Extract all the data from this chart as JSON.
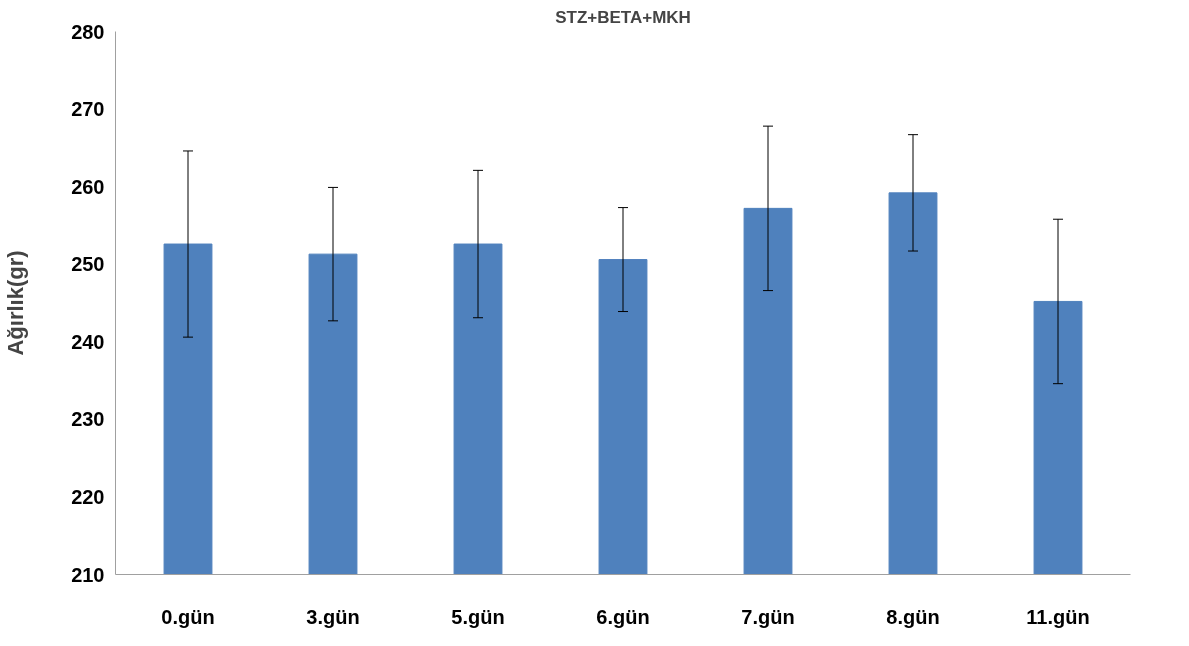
{
  "chart_data": {
    "type": "bar",
    "title": "STZ+BETA+MKH",
    "ylabel": "Ağırlık(gr)",
    "categories": [
      "0.gün",
      "3.gün",
      "5.gün",
      "6.gün",
      "7.gün",
      "8.gün",
      "11.gün"
    ],
    "values": [
      252.6,
      251.3,
      252.6,
      250.6,
      257.2,
      259.2,
      245.2
    ],
    "errors": [
      12.0,
      8.6,
      9.5,
      6.7,
      10.6,
      7.5,
      10.6
    ],
    "color": "#4f81bd",
    "ylim": [
      210,
      280
    ],
    "yticks": [
      210,
      220,
      230,
      240,
      250,
      260,
      270,
      280
    ],
    "grid": false
  }
}
